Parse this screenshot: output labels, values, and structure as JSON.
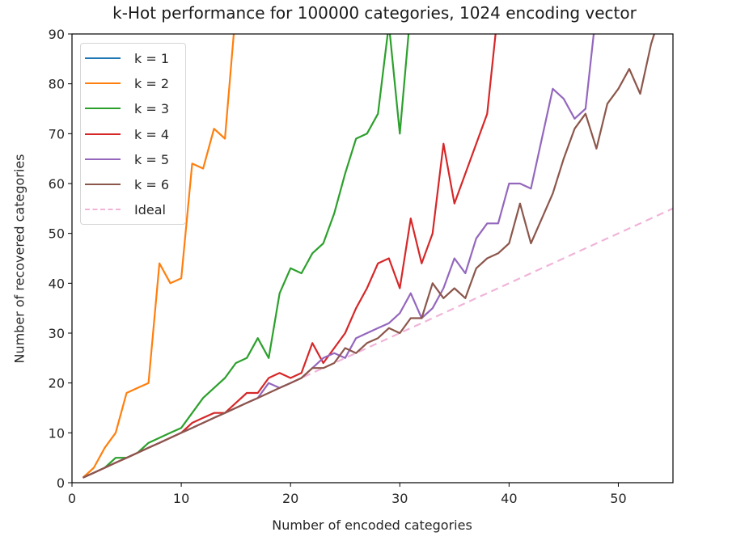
{
  "chart_data": {
    "type": "line",
    "title": "k-Hot performance for 100000 categories, 1024 encoding vector",
    "xlabel": "Number of encoded categories",
    "ylabel": "Number of recovered categories",
    "xlim": [
      0,
      55
    ],
    "ylim": [
      0,
      90
    ],
    "xticks": [
      0,
      10,
      20,
      30,
      40,
      50
    ],
    "yticks": [
      0,
      10,
      20,
      30,
      40,
      50,
      60,
      70,
      80,
      90
    ],
    "grid": false,
    "legend_position": "upper left",
    "series": [
      {
        "name": "k = 1",
        "color": "#1f77b4",
        "dashed": false,
        "x": [],
        "values": []
      },
      {
        "name": "k = 2",
        "color": "#ff7f0e",
        "dashed": false,
        "x": [
          1,
          2,
          3,
          4,
          5,
          6,
          7,
          8,
          9,
          10,
          11,
          12,
          13,
          14,
          15
        ],
        "values": [
          1,
          3,
          7,
          10,
          18,
          19,
          20,
          44,
          40,
          41,
          64,
          63,
          71,
          69,
          95
        ]
      },
      {
        "name": "k = 3",
        "color": "#2ca02c",
        "dashed": false,
        "x": [
          1,
          2,
          3,
          4,
          5,
          6,
          7,
          8,
          9,
          10,
          11,
          12,
          13,
          14,
          15,
          16,
          17,
          18,
          19,
          20,
          21,
          22,
          23,
          24,
          25,
          26,
          27,
          28,
          29,
          30,
          31
        ],
        "values": [
          1,
          2,
          3,
          5,
          5,
          6,
          8,
          9,
          10,
          11,
          14,
          17,
          19,
          21,
          24,
          25,
          29,
          25,
          38,
          43,
          42,
          46,
          48,
          54,
          62,
          69,
          70,
          74,
          92,
          70,
          95
        ]
      },
      {
        "name": "k = 4",
        "color": "#d62728",
        "dashed": false,
        "x": [
          1,
          2,
          3,
          4,
          5,
          6,
          7,
          8,
          9,
          10,
          11,
          12,
          13,
          14,
          15,
          16,
          17,
          18,
          19,
          20,
          21,
          22,
          23,
          24,
          25,
          26,
          27,
          28,
          29,
          30,
          31,
          32,
          33,
          34,
          35,
          36,
          37,
          38,
          39
        ],
        "values": [
          1,
          2,
          3,
          4,
          5,
          6,
          7,
          8,
          9,
          10,
          12,
          13,
          14,
          14,
          16,
          18,
          18,
          21,
          22,
          21,
          22,
          28,
          24,
          27,
          30,
          35,
          39,
          44,
          45,
          39,
          53,
          44,
          50,
          68,
          56,
          62,
          68,
          74,
          95
        ]
      },
      {
        "name": "k = 5",
        "color": "#9467bd",
        "dashed": false,
        "x": [
          1,
          2,
          3,
          4,
          5,
          6,
          7,
          8,
          9,
          10,
          11,
          12,
          13,
          14,
          15,
          16,
          17,
          18,
          19,
          20,
          21,
          22,
          23,
          24,
          25,
          26,
          27,
          28,
          29,
          30,
          31,
          32,
          33,
          34,
          35,
          36,
          37,
          38,
          39,
          40,
          41,
          42,
          43,
          44,
          45,
          46,
          47,
          48
        ],
        "values": [
          1,
          2,
          3,
          4,
          5,
          6,
          7,
          8,
          9,
          10,
          11,
          12,
          13,
          14,
          15,
          16,
          17,
          20,
          19,
          20,
          21,
          23,
          25,
          26,
          25,
          29,
          30,
          31,
          32,
          34,
          38,
          33,
          35,
          39,
          45,
          42,
          49,
          52,
          52,
          60,
          60,
          59,
          69,
          79,
          77,
          73,
          75,
          95
        ]
      },
      {
        "name": "k = 6",
        "color": "#8c564b",
        "dashed": false,
        "x": [
          1,
          2,
          3,
          4,
          5,
          6,
          7,
          8,
          9,
          10,
          11,
          12,
          13,
          14,
          15,
          16,
          17,
          18,
          19,
          20,
          21,
          22,
          23,
          24,
          25,
          26,
          27,
          28,
          29,
          30,
          31,
          32,
          33,
          34,
          35,
          36,
          37,
          38,
          39,
          40,
          41,
          42,
          43,
          44,
          45,
          46,
          47,
          48,
          49,
          50,
          51,
          52,
          53,
          54
        ],
        "values": [
          1,
          2,
          3,
          4,
          5,
          6,
          7,
          8,
          9,
          10,
          11,
          12,
          13,
          14,
          15,
          16,
          17,
          18,
          19,
          20,
          21,
          23,
          23,
          24,
          27,
          26,
          28,
          29,
          31,
          30,
          33,
          33,
          40,
          37,
          39,
          37,
          43,
          45,
          46,
          48,
          56,
          48,
          53,
          58,
          65,
          71,
          74,
          67,
          76,
          79,
          83,
          78,
          88,
          95
        ]
      },
      {
        "name": "Ideal",
        "color": "#f0b4d9",
        "dashed": true,
        "x": [
          1,
          55
        ],
        "values": [
          1,
          55
        ]
      }
    ]
  }
}
